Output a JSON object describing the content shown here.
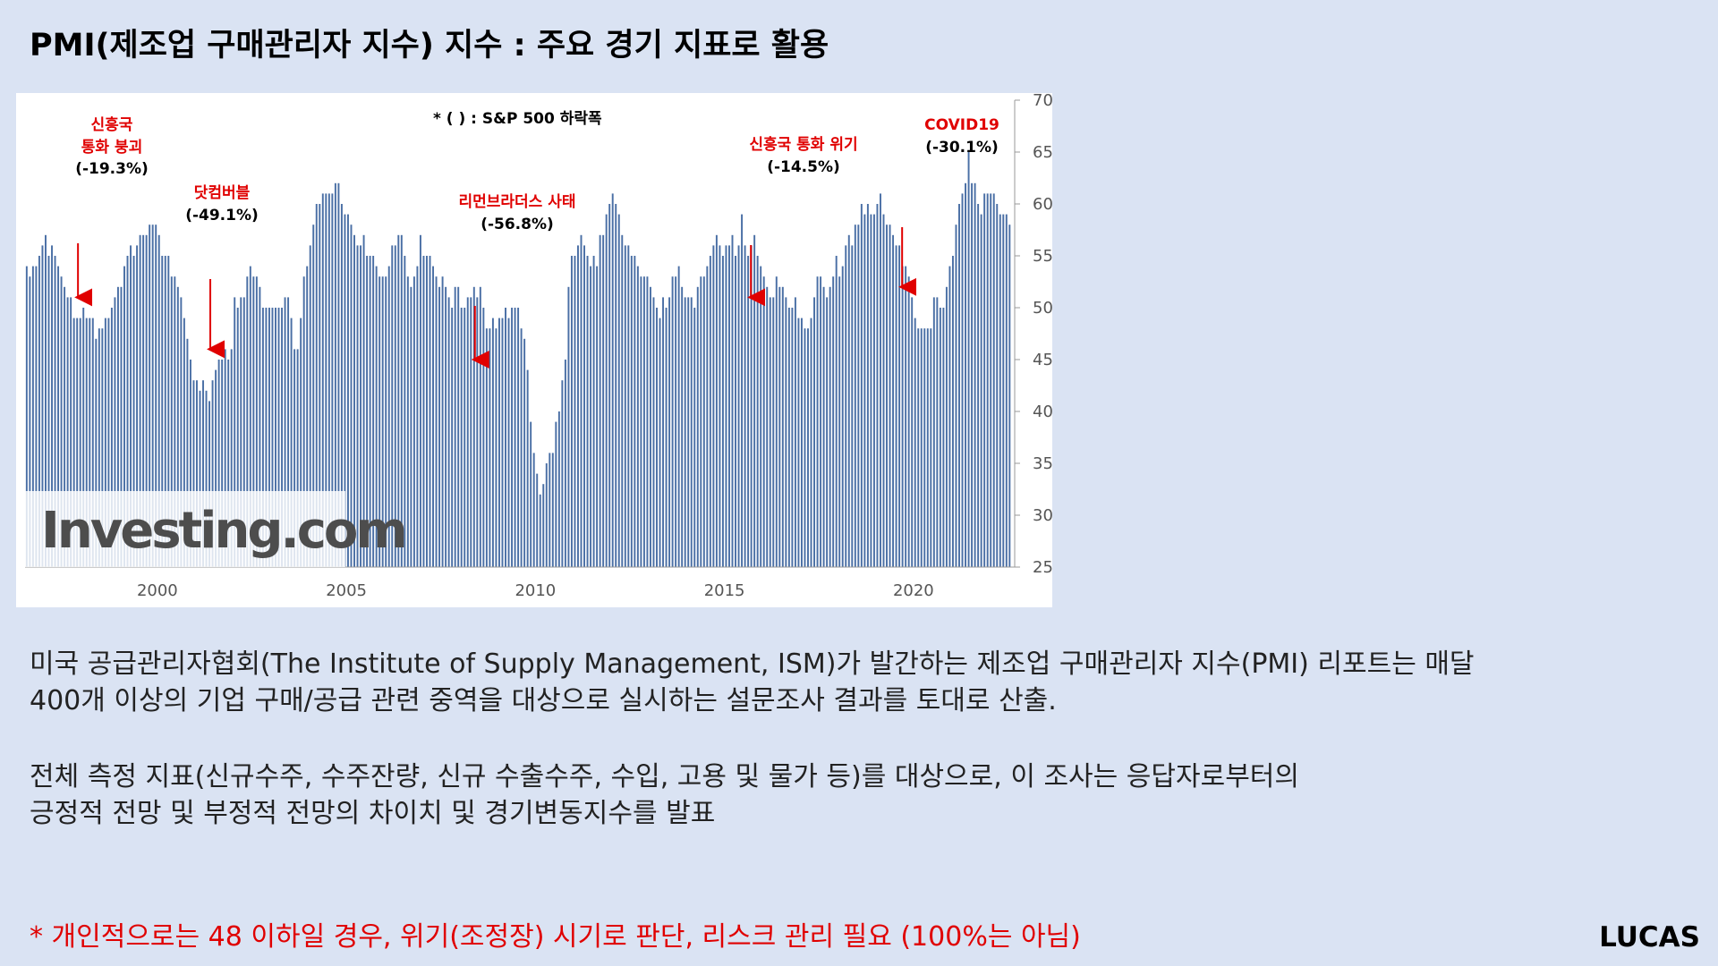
{
  "title": "PMI(제조업 구매관리자 지수) 지수 : 주요 경기 지표로 활용",
  "chart_data": {
    "type": "bar",
    "title": "",
    "note": "* ( ) : S&P 500 하락폭",
    "watermark": "Investing.com",
    "ylim": [
      25,
      70
    ],
    "y_ticks": [
      "70",
      "65",
      "60",
      "55",
      "50",
      "45",
      "40",
      "35",
      "30",
      "25"
    ],
    "x_ticks": [
      "2000",
      "2005",
      "2010",
      "2015",
      "2020"
    ],
    "bar_color": "#4a6fa5",
    "start_month": "1997-01",
    "values": [
      54,
      53,
      54,
      54,
      55,
      56,
      57,
      55,
      56,
      55,
      54,
      53,
      52,
      51,
      51,
      49,
      49,
      49,
      50,
      49,
      49,
      49,
      47,
      48,
      48,
      49,
      49,
      50,
      51,
      52,
      52,
      54,
      55,
      56,
      55,
      56,
      57,
      57,
      57,
      58,
      58,
      58,
      57,
      55,
      55,
      55,
      53,
      53,
      52,
      51,
      49,
      47,
      45,
      43,
      43,
      42,
      43,
      42,
      41,
      43,
      44,
      45,
      45,
      46,
      45,
      46,
      51,
      50,
      51,
      51,
      53,
      54,
      53,
      53,
      52,
      50,
      50,
      50,
      50,
      50,
      50,
      50,
      51,
      51,
      49,
      46,
      46,
      49,
      53,
      54,
      56,
      58,
      60,
      60,
      61,
      61,
      61,
      61,
      62,
      62,
      60,
      59,
      59,
      58,
      57,
      56,
      56,
      57,
      55,
      55,
      55,
      54,
      53,
      53,
      53,
      54,
      56,
      56,
      57,
      57,
      55,
      53,
      52,
      53,
      54,
      57,
      55,
      55,
      55,
      54,
      53,
      52,
      53,
      52,
      51,
      50,
      52,
      52,
      50,
      50,
      51,
      51,
      52,
      51,
      52,
      50,
      48,
      48,
      49,
      48,
      49,
      49,
      50,
      49,
      50,
      50,
      50,
      48,
      47,
      44,
      39,
      36,
      34,
      32,
      33,
      35,
      36,
      36,
      39,
      40,
      43,
      45,
      52,
      55,
      55,
      56,
      57,
      56,
      55,
      54,
      55,
      54,
      57,
      57,
      59,
      60,
      61,
      60,
      59,
      57,
      56,
      56,
      55,
      55,
      54,
      53,
      53,
      53,
      52,
      51,
      50,
      49,
      51,
      50,
      51,
      53,
      53,
      54,
      52,
      51,
      51,
      51,
      50,
      52,
      53,
      53,
      54,
      55,
      56,
      57,
      56,
      55,
      56,
      56,
      57,
      55,
      56,
      59,
      56,
      55,
      56,
      57,
      55,
      54,
      53,
      52,
      51,
      51,
      53,
      52,
      52,
      51,
      50,
      50,
      51,
      49,
      49,
      48,
      48,
      49,
      51,
      53,
      53,
      52,
      51,
      52,
      53,
      55,
      53,
      54,
      56,
      57,
      56,
      58,
      58,
      60,
      59,
      60,
      59,
      59,
      60,
      61,
      59,
      58,
      58,
      57,
      56,
      56,
      54,
      54,
      53,
      51,
      49,
      48,
      48,
      48,
      48,
      48,
      51,
      51,
      50,
      50,
      52,
      54,
      55,
      58,
      60,
      61,
      62,
      65,
      62,
      62,
      60,
      59,
      61,
      61,
      61,
      61,
      60,
      59,
      59,
      59,
      58
    ]
  },
  "annotations": [
    {
      "label": "신흥국\n통화 붕괴",
      "value": "(-19.3%)"
    },
    {
      "label": "닷컴버블",
      "value": "(-49.1%)"
    },
    {
      "label": "리먼브라더스 사태",
      "value": "(-56.8%)"
    },
    {
      "label": "신흥국 통화 위기",
      "value": "(-14.5%)"
    },
    {
      "label": "COVID19",
      "value": "(-30.1%)"
    }
  ],
  "colors": {
    "accent_red": "#e00000",
    "background": "#dae3f3"
  },
  "body": {
    "para1_line1": "미국 공급관리자협회(The Institute of Supply Management, ISM)가 발간하는 제조업 구매관리자 지수(PMI) 리포트는 매달",
    "para1_line2": "400개 이상의 기업 구매/공급 관련 중역을 대상으로 실시하는 설문조사 결과를 토대로 산출.",
    "para2_line1": "전체 측정 지표(신규수주, 수주잔량, 신규 수출수주, 수입, 고용 및 물가 등)를 대상으로, 이 조사는 응답자로부터의",
    "para2_line2": "긍정적 전망 및 부정적 전망의 차이치 및 경기변동지수를 발표"
  },
  "personal_note": "* 개인적으로는 48 이하일 경우, 위기(조정장) 시기로 판단, 리스크 관리 필요 (100%는 아님)",
  "author": "LUCAS"
}
